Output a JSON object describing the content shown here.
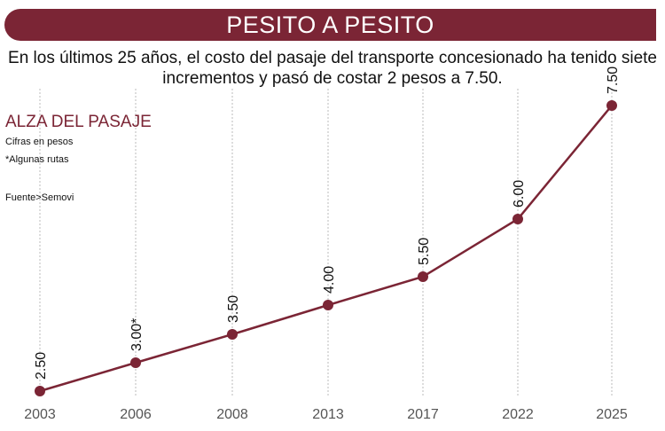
{
  "header": {
    "title": "PESITO A PESITO",
    "subtitle_line1": "En los últimos 25 años, el costo del pasaje del transporte concesionado ha tenido siete",
    "subtitle_line2": "incrementos y pasó de costar 2 pesos a 7.50."
  },
  "colors": {
    "accent": "#7b2535",
    "grid": "#bbbbbb",
    "axis_text": "#555555"
  },
  "chart_data": {
    "type": "line",
    "title": "ALZA DEL PASAJE",
    "notes": [
      "Cifras en pesos",
      "*Algunas rutas"
    ],
    "source": "Fuente>Semovi",
    "categories": [
      "2003",
      "2006",
      "2008",
      "2013",
      "2017",
      "2022",
      "2025"
    ],
    "values": [
      2.5,
      3.0,
      3.5,
      4.0,
      5.5,
      6.0,
      7.5
    ],
    "data_labels": [
      "2.50",
      "3.00*",
      "3.50",
      "4.00",
      "5.50",
      "6.00",
      "7.50"
    ],
    "grid": "vertical dashed",
    "xlabel": "",
    "ylabel": ""
  }
}
